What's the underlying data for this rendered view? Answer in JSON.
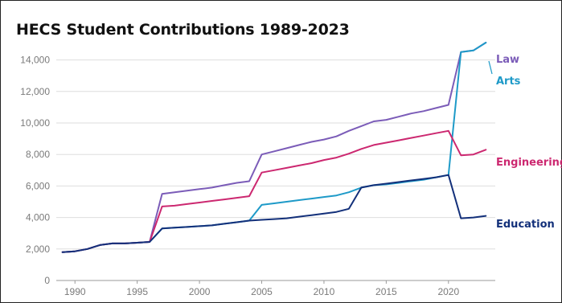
{
  "chart_data": {
    "type": "line",
    "title": "HECS Student Contributions 1989-2023",
    "xlabel": "",
    "ylabel": "",
    "xlim": [
      1988.5,
      2023.5
    ],
    "ylim": [
      0,
      15000
    ],
    "x_ticks": [
      1990,
      1995,
      2000,
      2005,
      2010,
      2015,
      2020
    ],
    "y_ticks": [
      0,
      2000,
      4000,
      6000,
      8000,
      10000,
      12000,
      14000
    ],
    "x_tick_labels": [
      "1990",
      "1995",
      "2000",
      "2005",
      "2010",
      "2015",
      "2020"
    ],
    "y_tick_labels": [
      "0",
      "2,000",
      "4,000",
      "6,000",
      "8,000",
      "10,000",
      "12,000",
      "14,000"
    ],
    "grid": "horizontal",
    "legend": "direct labels at right",
    "series": [
      {
        "name": "Law",
        "color": "#7b5cb8",
        "points": [
          [
            1989,
            1800
          ],
          [
            1990,
            1850
          ],
          [
            1991,
            2000
          ],
          [
            1992,
            2250
          ],
          [
            1993,
            2350
          ],
          [
            1994,
            2350
          ],
          [
            1995,
            2400
          ],
          [
            1996,
            2450
          ],
          [
            1997,
            5500
          ],
          [
            1998,
            5600
          ],
          [
            1999,
            5700
          ],
          [
            2000,
            5800
          ],
          [
            2001,
            5900
          ],
          [
            2002,
            6050
          ],
          [
            2003,
            6200
          ],
          [
            2004,
            6300
          ],
          [
            2005,
            8000
          ],
          [
            2006,
            8200
          ],
          [
            2007,
            8400
          ],
          [
            2008,
            8600
          ],
          [
            2009,
            8800
          ],
          [
            2010,
            8950
          ],
          [
            2011,
            9150
          ],
          [
            2012,
            9500
          ],
          [
            2013,
            9800
          ],
          [
            2014,
            10100
          ],
          [
            2015,
            10200
          ],
          [
            2016,
            10400
          ],
          [
            2017,
            10600
          ],
          [
            2018,
            10750
          ],
          [
            2019,
            10950
          ],
          [
            2020,
            11150
          ],
          [
            2021,
            14500
          ],
          [
            2022,
            14600
          ],
          [
            2023,
            15100
          ]
        ]
      },
      {
        "name": "Arts",
        "color": "#1e9ac8",
        "points": [
          [
            1989,
            1800
          ],
          [
            1990,
            1850
          ],
          [
            1991,
            2000
          ],
          [
            1992,
            2250
          ],
          [
            1993,
            2350
          ],
          [
            1994,
            2350
          ],
          [
            1995,
            2400
          ],
          [
            1996,
            2450
          ],
          [
            1997,
            3300
          ],
          [
            1998,
            3350
          ],
          [
            1999,
            3400
          ],
          [
            2000,
            3450
          ],
          [
            2001,
            3500
          ],
          [
            2002,
            3600
          ],
          [
            2003,
            3700
          ],
          [
            2004,
            3800
          ],
          [
            2005,
            4800
          ],
          [
            2006,
            4900
          ],
          [
            2007,
            5000
          ],
          [
            2008,
            5100
          ],
          [
            2009,
            5200
          ],
          [
            2010,
            5300
          ],
          [
            2011,
            5400
          ],
          [
            2012,
            5600
          ],
          [
            2013,
            5900
          ],
          [
            2014,
            6050
          ],
          [
            2015,
            6100
          ],
          [
            2016,
            6200
          ],
          [
            2017,
            6300
          ],
          [
            2018,
            6400
          ],
          [
            2019,
            6550
          ],
          [
            2020,
            6700
          ],
          [
            2021,
            14500
          ],
          [
            2022,
            14600
          ],
          [
            2023,
            15100
          ]
        ]
      },
      {
        "name": "Engineering",
        "color": "#cc2870",
        "points": [
          [
            1989,
            1800
          ],
          [
            1990,
            1850
          ],
          [
            1991,
            2000
          ],
          [
            1992,
            2250
          ],
          [
            1993,
            2350
          ],
          [
            1994,
            2350
          ],
          [
            1995,
            2400
          ],
          [
            1996,
            2450
          ],
          [
            1997,
            4700
          ],
          [
            1998,
            4750
          ],
          [
            1999,
            4850
          ],
          [
            2000,
            4950
          ],
          [
            2001,
            5050
          ],
          [
            2002,
            5150
          ],
          [
            2003,
            5250
          ],
          [
            2004,
            5350
          ],
          [
            2005,
            6850
          ],
          [
            2006,
            7000
          ],
          [
            2007,
            7150
          ],
          [
            2008,
            7300
          ],
          [
            2009,
            7450
          ],
          [
            2010,
            7650
          ],
          [
            2011,
            7800
          ],
          [
            2012,
            8050
          ],
          [
            2013,
            8350
          ],
          [
            2014,
            8600
          ],
          [
            2015,
            8750
          ],
          [
            2016,
            8900
          ],
          [
            2017,
            9050
          ],
          [
            2018,
            9200
          ],
          [
            2019,
            9350
          ],
          [
            2020,
            9500
          ],
          [
            2021,
            7950
          ],
          [
            2022,
            8000
          ],
          [
            2023,
            8300
          ]
        ]
      },
      {
        "name": "Education",
        "color": "#13307a",
        "points": [
          [
            1989,
            1800
          ],
          [
            1990,
            1850
          ],
          [
            1991,
            2000
          ],
          [
            1992,
            2250
          ],
          [
            1993,
            2350
          ],
          [
            1994,
            2350
          ],
          [
            1995,
            2400
          ],
          [
            1996,
            2450
          ],
          [
            1997,
            3300
          ],
          [
            1998,
            3350
          ],
          [
            1999,
            3400
          ],
          [
            2000,
            3450
          ],
          [
            2001,
            3500
          ],
          [
            2002,
            3600
          ],
          [
            2003,
            3700
          ],
          [
            2004,
            3800
          ],
          [
            2005,
            3850
          ],
          [
            2006,
            3900
          ],
          [
            2007,
            3950
          ],
          [
            2008,
            4050
          ],
          [
            2009,
            4150
          ],
          [
            2010,
            4250
          ],
          [
            2011,
            4350
          ],
          [
            2012,
            4550
          ],
          [
            2013,
            5900
          ],
          [
            2014,
            6050
          ],
          [
            2015,
            6150
          ],
          [
            2016,
            6250
          ],
          [
            2017,
            6350
          ],
          [
            2018,
            6450
          ],
          [
            2019,
            6550
          ],
          [
            2020,
            6700
          ],
          [
            2021,
            3950
          ],
          [
            2022,
            4000
          ],
          [
            2023,
            4100
          ]
        ]
      }
    ]
  }
}
